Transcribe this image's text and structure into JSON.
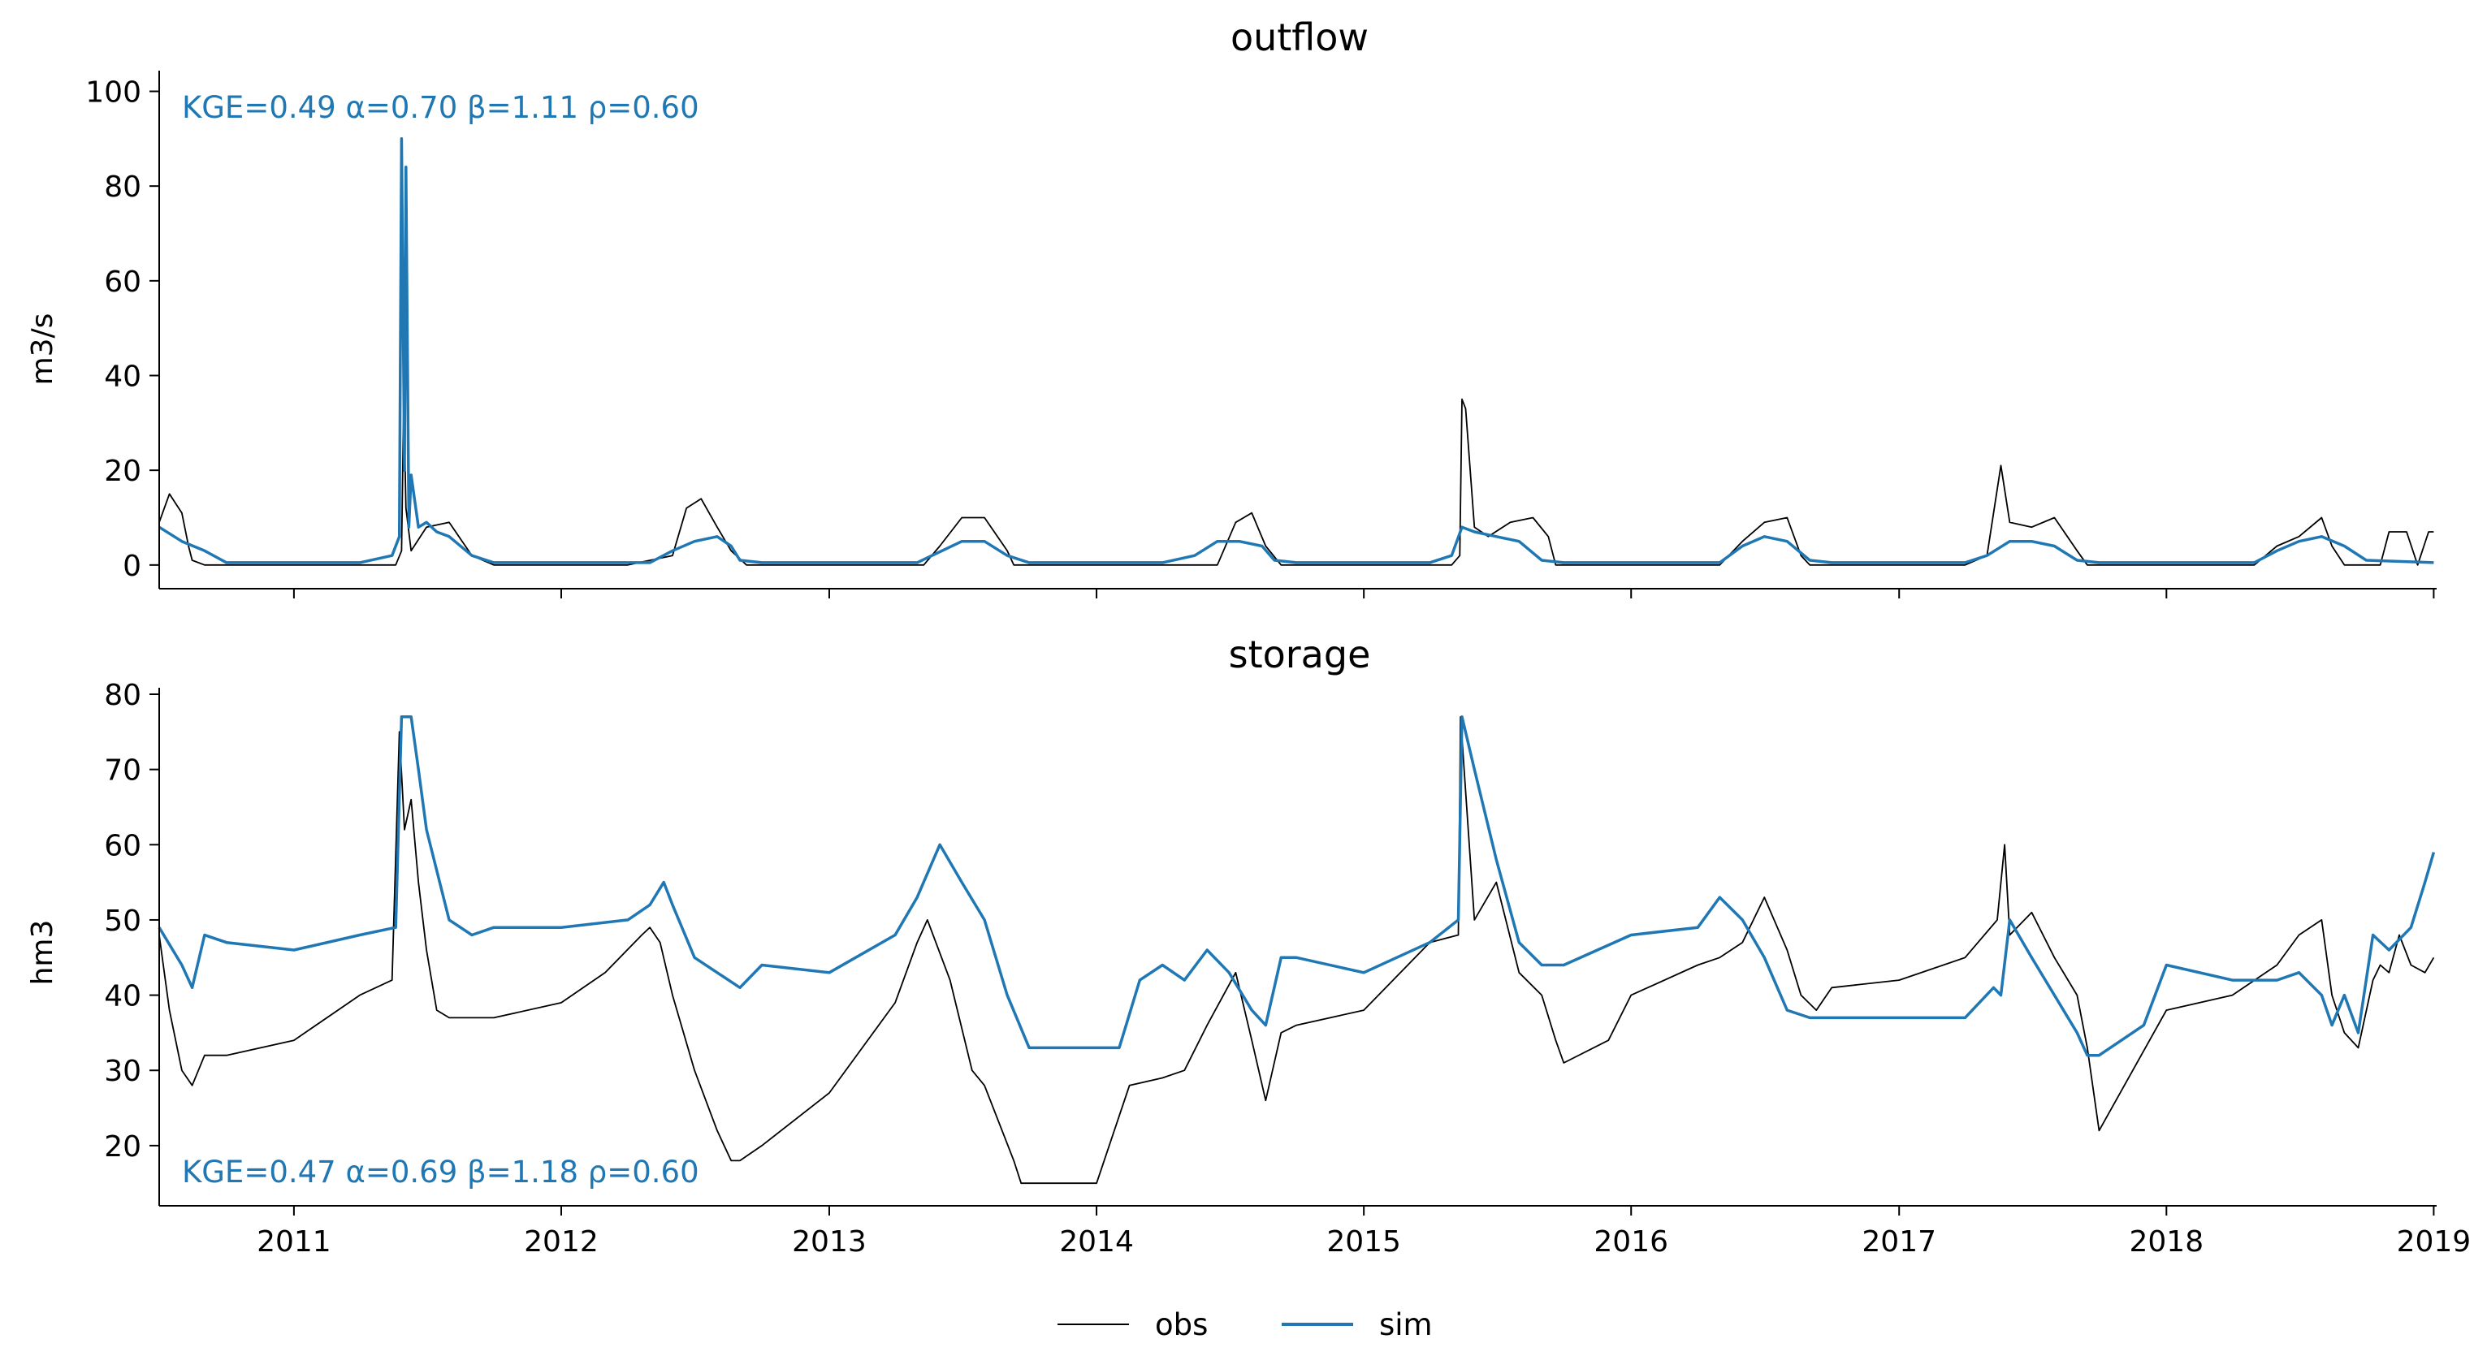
{
  "chart_data": [
    {
      "type": "line",
      "title": "outflow",
      "xlabel": "",
      "ylabel": "m3/s",
      "ylim": [
        -5,
        103
      ],
      "xlim": [
        "2010-07-01",
        "2019-01-05"
      ],
      "yticks": [
        0,
        20,
        40,
        60,
        80,
        100
      ],
      "xticks": [
        "2011",
        "2012",
        "2013",
        "2014",
        "2015",
        "2016",
        "2017",
        "2018",
        "2019"
      ],
      "xtick_labels_visible": false,
      "grid": false,
      "annotation": "KGE=0.49  α=0.70  β=1.11  ρ=0.60",
      "annotation_placement": "top-left",
      "series": [
        {
          "name": "obs",
          "color": "#000000",
          "x": [
            "2010-07-01",
            "2010-07-15",
            "2010-08-01",
            "2010-08-10",
            "2010-08-15",
            "2010-09-01",
            "2010-10-01",
            "2011-01-01",
            "2011-04-01",
            "2011-05-20",
            "2011-05-28",
            "2011-05-31",
            "2011-06-03",
            "2011-06-10",
            "2011-07-01",
            "2011-08-01",
            "2011-09-01",
            "2011-10-01",
            "2012-01-01",
            "2012-04-01",
            "2012-06-01",
            "2012-06-20",
            "2012-07-10",
            "2012-08-01",
            "2012-08-20",
            "2012-09-10",
            "2012-09-30",
            "2012-10-10",
            "2013-01-01",
            "2013-04-01",
            "2013-05-10",
            "2013-06-01",
            "2013-07-01",
            "2013-08-01",
            "2013-09-01",
            "2013-09-10",
            "2013-10-01",
            "2014-01-01",
            "2014-04-01",
            "2014-05-15",
            "2014-06-15",
            "2014-07-10",
            "2014-08-01",
            "2014-08-20",
            "2014-09-10",
            "2015-01-01",
            "2015-04-01",
            "2015-05-01",
            "2015-05-12",
            "2015-05-15",
            "2015-05-20",
            "2015-06-01",
            "2015-06-20",
            "2015-07-20",
            "2015-08-20",
            "2015-09-10",
            "2015-09-20",
            "2015-10-01",
            "2016-01-01",
            "2016-04-01",
            "2016-05-01",
            "2016-06-01",
            "2016-07-01",
            "2016-08-01",
            "2016-08-20",
            "2016-09-01",
            "2017-01-01",
            "2017-03-15",
            "2017-04-01",
            "2017-05-01",
            "2017-05-20",
            "2017-06-01",
            "2017-07-01",
            "2017-08-01",
            "2017-09-01",
            "2017-09-15",
            "2018-01-01",
            "2018-04-01",
            "2018-05-01",
            "2018-06-01",
            "2018-07-01",
            "2018-08-01",
            "2018-08-15",
            "2018-09-01",
            "2018-09-20",
            "2018-10-20",
            "2018-11-01",
            "2018-11-25",
            "2018-12-10",
            "2018-12-25",
            "2019-01-01"
          ],
          "y": [
            9,
            15,
            11,
            4,
            1,
            0,
            0,
            0,
            0,
            0,
            3,
            35,
            12,
            3,
            8,
            9,
            2,
            0,
            0,
            0,
            2,
            12,
            14,
            8,
            3,
            0,
            0,
            0,
            0,
            0,
            0,
            4,
            10,
            10,
            3,
            0,
            0,
            0,
            0,
            0,
            0,
            9,
            11,
            4,
            0,
            0,
            0,
            0,
            2,
            35,
            33,
            8,
            6,
            9,
            10,
            6,
            0,
            0,
            0,
            0,
            0,
            5,
            9,
            10,
            2,
            0,
            0,
            0,
            0,
            2,
            21,
            9,
            8,
            10,
            3,
            0,
            0,
            0,
            0,
            4,
            6,
            10,
            4,
            0,
            0,
            0,
            7,
            7,
            0,
            7,
            7
          ]
        },
        {
          "name": "sim",
          "color": "#1f77b4",
          "x": [
            "2010-07-01",
            "2010-08-01",
            "2010-09-01",
            "2010-10-01",
            "2011-01-01",
            "2011-04-01",
            "2011-05-15",
            "2011-05-25",
            "2011-05-28",
            "2011-06-01",
            "2011-06-03",
            "2011-06-07",
            "2011-06-10",
            "2011-06-20",
            "2011-07-01",
            "2011-07-15",
            "2011-08-01",
            "2011-09-01",
            "2011-10-01",
            "2012-01-01",
            "2012-05-01",
            "2012-06-01",
            "2012-07-01",
            "2012-08-01",
            "2012-08-20",
            "2012-09-01",
            "2012-10-01",
            "2013-01-01",
            "2013-05-01",
            "2013-07-01",
            "2013-08-01",
            "2013-09-01",
            "2013-10-01",
            "2014-01-01",
            "2014-04-01",
            "2014-05-15",
            "2014-06-15",
            "2014-07-15",
            "2014-08-15",
            "2014-09-01",
            "2014-10-01",
            "2015-01-01",
            "2015-04-01",
            "2015-05-01",
            "2015-05-15",
            "2015-06-01",
            "2015-07-01",
            "2015-08-01",
            "2015-09-01",
            "2015-10-01",
            "2016-01-01",
            "2016-05-01",
            "2016-06-01",
            "2016-07-01",
            "2016-08-01",
            "2016-09-01",
            "2016-10-01",
            "2017-01-01",
            "2017-04-01",
            "2017-05-01",
            "2017-06-01",
            "2017-07-01",
            "2017-08-01",
            "2017-09-01",
            "2017-10-01",
            "2018-01-01",
            "2018-04-01",
            "2018-05-01",
            "2018-06-01",
            "2018-07-01",
            "2018-08-01",
            "2018-09-01",
            "2018-10-01",
            "2019-01-01"
          ],
          "y": [
            8,
            5,
            3,
            0.5,
            0.5,
            0.5,
            2,
            6,
            90,
            20,
            84,
            8,
            19,
            8,
            9,
            7,
            6,
            2,
            0.5,
            0.5,
            0.5,
            3,
            5,
            6,
            4,
            1,
            0.5,
            0.5,
            0.5,
            5,
            5,
            2,
            0.5,
            0.5,
            0.5,
            2,
            5,
            5,
            4,
            1,
            0.5,
            0.5,
            0.5,
            2,
            8,
            7,
            6,
            5,
            1,
            0.5,
            0.5,
            0.5,
            4,
            6,
            5,
            1,
            0.5,
            0.5,
            0.5,
            2,
            5,
            5,
            4,
            1,
            0.5,
            0.5,
            0.5,
            0.5,
            3,
            5,
            6,
            4,
            1,
            0.5
          ]
        }
      ]
    },
    {
      "type": "line",
      "title": "storage",
      "xlabel": "",
      "ylabel": "hm3",
      "ylim": [
        12,
        80
      ],
      "xlim": [
        "2010-07-01",
        "2019-01-05"
      ],
      "yticks": [
        20,
        30,
        40,
        50,
        60,
        70,
        80
      ],
      "xticks": [
        "2011",
        "2012",
        "2013",
        "2014",
        "2015",
        "2016",
        "2017",
        "2018",
        "2019"
      ],
      "xtick_labels_visible": true,
      "grid": false,
      "annotation": "KGE=0.47  α=0.69  β=1.18  ρ=0.60",
      "annotation_placement": "bottom-left",
      "series": [
        {
          "name": "obs",
          "color": "#000000",
          "x": [
            "2010-07-01",
            "2010-07-15",
            "2010-08-01",
            "2010-08-15",
            "2010-09-01",
            "2010-10-01",
            "2011-01-01",
            "2011-04-01",
            "2011-05-15",
            "2011-05-25",
            "2011-06-01",
            "2011-06-10",
            "2011-06-20",
            "2011-07-01",
            "2011-07-15",
            "2011-08-01",
            "2011-09-01",
            "2011-10-01",
            "2012-01-01",
            "2012-03-01",
            "2012-04-20",
            "2012-05-01",
            "2012-05-15",
            "2012-06-01",
            "2012-07-01",
            "2012-08-01",
            "2012-08-20",
            "2012-09-01",
            "2012-10-01",
            "2013-01-01",
            "2013-04-01",
            "2013-05-01",
            "2013-05-15",
            "2013-06-15",
            "2013-07-15",
            "2013-08-01",
            "2013-09-10",
            "2013-09-20",
            "2013-10-01",
            "2013-12-01",
            "2014-01-01",
            "2014-02-15",
            "2014-04-01",
            "2014-05-01",
            "2014-06-01",
            "2014-07-10",
            "2014-08-01",
            "2014-08-20",
            "2014-09-10",
            "2014-10-01",
            "2015-01-01",
            "2015-04-01",
            "2015-05-10",
            "2015-05-13",
            "2015-06-01",
            "2015-07-01",
            "2015-08-01",
            "2015-09-01",
            "2015-09-20",
            "2015-10-01",
            "2015-12-01",
            "2016-01-01",
            "2016-04-01",
            "2016-05-01",
            "2016-06-01",
            "2016-07-01",
            "2016-08-01",
            "2016-08-20",
            "2016-09-10",
            "2016-10-01",
            "2017-01-01",
            "2017-04-01",
            "2017-05-15",
            "2017-05-25",
            "2017-06-01",
            "2017-07-01",
            "2017-08-01",
            "2017-09-01",
            "2017-09-15",
            "2017-10-01",
            "2018-01-01",
            "2018-04-01",
            "2018-06-01",
            "2018-07-01",
            "2018-08-01",
            "2018-08-15",
            "2018-09-01",
            "2018-09-20",
            "2018-10-10",
            "2018-10-20",
            "2018-11-01",
            "2018-11-15",
            "2018-12-01",
            "2018-12-20",
            "2019-01-01"
          ],
          "y": [
            48,
            38,
            30,
            28,
            32,
            32,
            34,
            40,
            42,
            75,
            62,
            66,
            55,
            46,
            38,
            37,
            37,
            37,
            39,
            43,
            48,
            49,
            47,
            40,
            30,
            22,
            18,
            18,
            20,
            27,
            39,
            47,
            50,
            42,
            30,
            28,
            18,
            15,
            15,
            15,
            15,
            28,
            29,
            30,
            36,
            43,
            34,
            26,
            35,
            36,
            38,
            47,
            48,
            77,
            50,
            55,
            43,
            40,
            34,
            31,
            34,
            40,
            44,
            45,
            47,
            53,
            46,
            40,
            38,
            41,
            42,
            45,
            50,
            60,
            48,
            51,
            45,
            40,
            33,
            22,
            38,
            40,
            44,
            48,
            50,
            40,
            35,
            33,
            42,
            44,
            43,
            48,
            44,
            43,
            45
          ]
        },
        {
          "name": "sim",
          "color": "#1f77b4",
          "x": [
            "2010-07-01",
            "2010-08-01",
            "2010-08-15",
            "2010-09-01",
            "2010-10-01",
            "2011-01-01",
            "2011-04-01",
            "2011-05-20",
            "2011-05-28",
            "2011-06-10",
            "2011-06-20",
            "2011-07-01",
            "2011-08-01",
            "2011-09-01",
            "2011-10-01",
            "2012-01-01",
            "2012-04-01",
            "2012-05-01",
            "2012-05-20",
            "2012-06-01",
            "2012-07-01",
            "2012-08-01",
            "2012-09-01",
            "2012-10-01",
            "2013-01-01",
            "2013-04-01",
            "2013-05-01",
            "2013-06-01",
            "2013-07-01",
            "2013-08-01",
            "2013-09-01",
            "2013-10-01",
            "2013-12-01",
            "2014-01-01",
            "2014-02-01",
            "2014-03-01",
            "2014-04-01",
            "2014-05-01",
            "2014-06-01",
            "2014-07-01",
            "2014-08-01",
            "2014-08-20",
            "2014-09-10",
            "2014-10-01",
            "2015-01-01",
            "2015-04-01",
            "2015-05-10",
            "2015-05-15",
            "2015-06-01",
            "2015-07-01",
            "2015-08-01",
            "2015-09-01",
            "2015-10-01",
            "2016-01-01",
            "2016-04-01",
            "2016-05-01",
            "2016-06-01",
            "2016-07-01",
            "2016-08-01",
            "2016-09-01",
            "2016-10-01",
            "2017-01-01",
            "2017-04-01",
            "2017-05-10",
            "2017-05-20",
            "2017-06-01",
            "2017-07-01",
            "2017-08-01",
            "2017-09-01",
            "2017-09-15",
            "2017-10-01",
            "2017-12-01",
            "2018-01-01",
            "2018-04-01",
            "2018-06-01",
            "2018-07-01",
            "2018-08-01",
            "2018-08-15",
            "2018-09-01",
            "2018-09-20",
            "2018-10-10",
            "2018-11-01",
            "2018-12-01",
            "2018-12-20",
            "2019-01-01"
          ],
          "y": [
            49,
            44,
            41,
            48,
            47,
            46,
            48,
            49,
            77,
            77,
            70,
            62,
            50,
            48,
            49,
            49,
            50,
            52,
            55,
            52,
            45,
            43,
            41,
            44,
            43,
            48,
            53,
            60,
            55,
            50,
            40,
            33,
            33,
            33,
            33,
            42,
            44,
            42,
            46,
            43,
            38,
            36,
            45,
            45,
            43,
            47,
            50,
            77,
            70,
            58,
            47,
            44,
            44,
            48,
            49,
            53,
            50,
            45,
            38,
            37,
            37,
            37,
            37,
            41,
            40,
            50,
            45,
            40,
            35,
            32,
            32,
            36,
            44,
            42,
            42,
            43,
            40,
            36,
            40,
            35,
            48,
            46,
            49,
            55,
            59
          ]
        }
      ]
    }
  ],
  "legend": {
    "placement": "bottom-center",
    "entries": [
      {
        "label": "obs",
        "color": "#000000"
      },
      {
        "label": "sim",
        "color": "#1f77b4"
      }
    ]
  }
}
